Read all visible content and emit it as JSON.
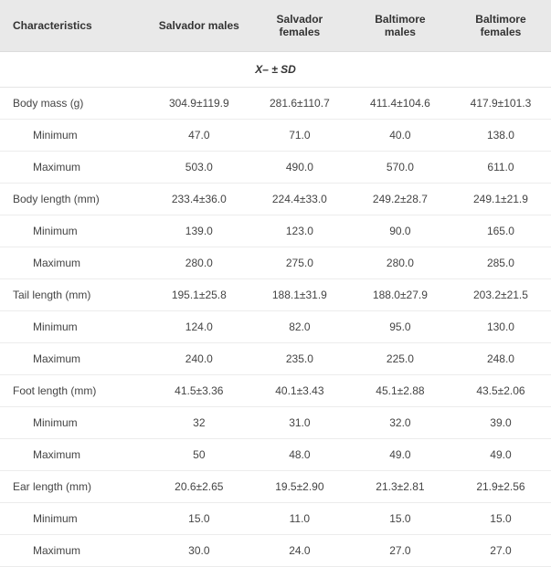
{
  "table": {
    "columns": [
      {
        "key": "char",
        "label": "Characteristics",
        "align": "left"
      },
      {
        "key": "sm",
        "label": "Salvador males",
        "align": "center"
      },
      {
        "key": "sf",
        "label": "Salvador females",
        "align": "center"
      },
      {
        "key": "bm",
        "label": "Baltimore males",
        "align": "center"
      },
      {
        "key": "bf",
        "label": "Baltimore females",
        "align": "center"
      }
    ],
    "subheader": "X– ± SD",
    "rows": [
      {
        "label": "Body mass (g)",
        "indent": false,
        "sm": "304.9±119.9",
        "sf": "281.6±110.7",
        "bm": "411.4±104.6",
        "bf": "417.9±101.3"
      },
      {
        "label": "Minimum",
        "indent": true,
        "sm": "47.0",
        "sf": "71.0",
        "bm": "40.0",
        "bf": "138.0"
      },
      {
        "label": "Maximum",
        "indent": true,
        "sm": "503.0",
        "sf": "490.0",
        "bm": "570.0",
        "bf": "611.0"
      },
      {
        "label": "Body length (mm)",
        "indent": false,
        "sm": "233.4±36.0",
        "sf": "224.4±33.0",
        "bm": "249.2±28.7",
        "bf": "249.1±21.9"
      },
      {
        "label": "Minimum",
        "indent": true,
        "sm": "139.0",
        "sf": "123.0",
        "bm": "90.0",
        "bf": "165.0"
      },
      {
        "label": "Maximum",
        "indent": true,
        "sm": "280.0",
        "sf": "275.0",
        "bm": "280.0",
        "bf": "285.0"
      },
      {
        "label": "Tail length (mm)",
        "indent": false,
        "sm": "195.1±25.8",
        "sf": "188.1±31.9",
        "bm": "188.0±27.9",
        "bf": "203.2±21.5"
      },
      {
        "label": "Minimum",
        "indent": true,
        "sm": "124.0",
        "sf": "82.0",
        "bm": "95.0",
        "bf": "130.0"
      },
      {
        "label": "Maximum",
        "indent": true,
        "sm": "240.0",
        "sf": "235.0",
        "bm": "225.0",
        "bf": "248.0"
      },
      {
        "label": "Foot length (mm)",
        "indent": false,
        "sm": "41.5±3.36",
        "sf": "40.1±3.43",
        "bm": "45.1±2.88",
        "bf": "43.5±2.06"
      },
      {
        "label": "Minimum",
        "indent": true,
        "sm": "32",
        "sf": "31.0",
        "bm": "32.0",
        "bf": "39.0"
      },
      {
        "label": "Maximum",
        "indent": true,
        "sm": "50",
        "sf": "48.0",
        "bm": "49.0",
        "bf": "49.0"
      },
      {
        "label": "Ear length (mm)",
        "indent": false,
        "sm": "20.6±2.65",
        "sf": "19.5±2.90",
        "bm": "21.3±2.81",
        "bf": "21.9±2.56"
      },
      {
        "label": "Minimum",
        "indent": true,
        "sm": "15.0",
        "sf": "11.0",
        "bm": "15.0",
        "bf": "15.0"
      },
      {
        "label": "Maximum",
        "indent": true,
        "sm": "30.0",
        "sf": "24.0",
        "bm": "27.0",
        "bf": "27.0"
      }
    ]
  }
}
